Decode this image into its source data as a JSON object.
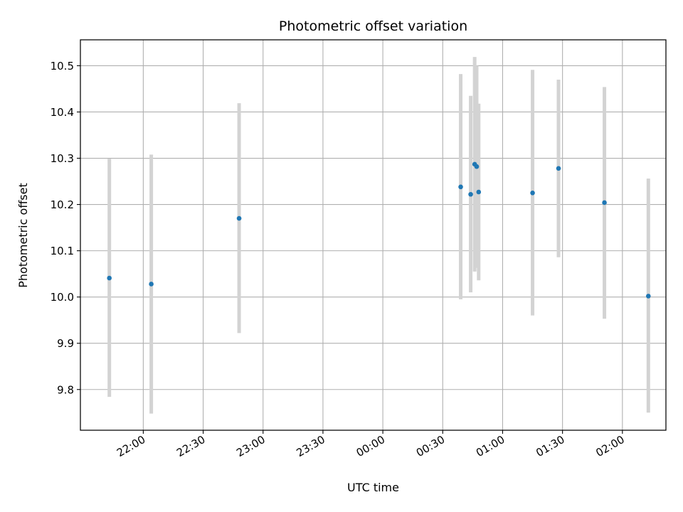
{
  "chart_data": {
    "type": "scatter",
    "title": "Photometric offset variation",
    "xlabel": "UTC time",
    "ylabel": "Photometric offset",
    "grid": true,
    "x_axis": {
      "unit": "minutes after 21:30 UTC",
      "ticks": [
        {
          "value": 30,
          "label": "22:00"
        },
        {
          "value": 60,
          "label": "22:30"
        },
        {
          "value": 90,
          "label": "23:00"
        },
        {
          "value": 120,
          "label": "23:30"
        },
        {
          "value": 150,
          "label": "00:00"
        },
        {
          "value": 180,
          "label": "00:30"
        },
        {
          "value": 210,
          "label": "01:00"
        },
        {
          "value": 240,
          "label": "01:30"
        },
        {
          "value": 270,
          "label": "02:00"
        }
      ],
      "xlim": [
        -1.5,
        291.8
      ]
    },
    "y_axis": {
      "ticks": [
        9.8,
        9.9,
        10.0,
        10.1,
        10.2,
        10.3,
        10.4,
        10.5
      ],
      "ylim": [
        9.712,
        10.556
      ]
    },
    "point_color": "#1f77b4",
    "errorbar_color": "#d3d3d3",
    "points": [
      {
        "time": "21:43",
        "y": 10.041,
        "ylow": 9.784,
        "yhigh": 10.299
      },
      {
        "time": "22:04",
        "y": 10.028,
        "ylow": 9.748,
        "yhigh": 10.308
      },
      {
        "time": "22:48",
        "y": 10.17,
        "ylow": 9.922,
        "yhigh": 10.419
      },
      {
        "time": "00:39",
        "y": 10.238,
        "ylow": 9.995,
        "yhigh": 10.482
      },
      {
        "time": "00:44",
        "y": 10.222,
        "ylow": 10.01,
        "yhigh": 10.435
      },
      {
        "time": "00:46",
        "y": 10.287,
        "ylow": 10.055,
        "yhigh": 10.519
      },
      {
        "time": "00:47",
        "y": 10.282,
        "ylow": 10.063,
        "yhigh": 10.5
      },
      {
        "time": "00:48",
        "y": 10.227,
        "ylow": 10.036,
        "yhigh": 10.418
      },
      {
        "time": "01:15",
        "y": 10.225,
        "ylow": 9.96,
        "yhigh": 10.491
      },
      {
        "time": "01:28",
        "y": 10.278,
        "ylow": 10.086,
        "yhigh": 10.47
      },
      {
        "time": "01:51",
        "y": 10.204,
        "ylow": 9.953,
        "yhigh": 10.454
      },
      {
        "time": "02:13",
        "y": 10.002,
        "ylow": 9.75,
        "yhigh": 10.256
      }
    ]
  }
}
